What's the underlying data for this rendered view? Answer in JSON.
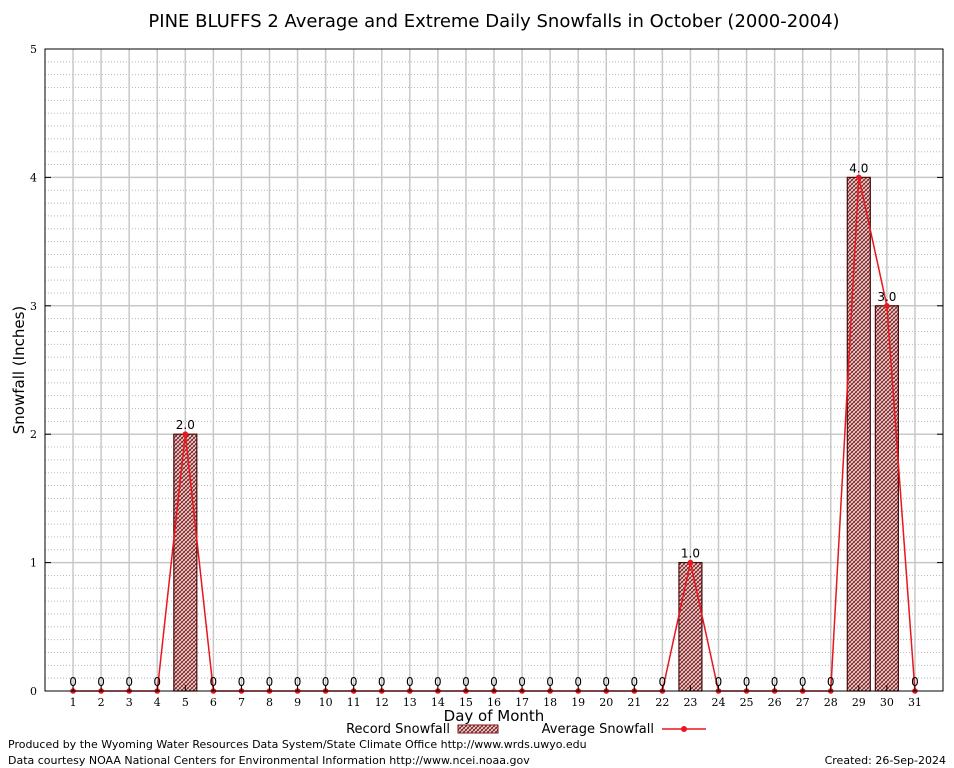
{
  "chart_data": {
    "type": "bar",
    "title": "PINE BLUFFS 2 Average and Extreme Daily Snowfalls in October (2000-2004)",
    "xlabel": "Day of Month",
    "ylabel": "Snowfall (Inches)",
    "ylim": [
      0,
      5
    ],
    "yticks": [
      "0",
      "1",
      "2",
      "3",
      "4",
      "5"
    ],
    "categories": [
      "1",
      "2",
      "3",
      "4",
      "5",
      "6",
      "7",
      "8",
      "9",
      "10",
      "11",
      "12",
      "13",
      "14",
      "15",
      "16",
      "17",
      "18",
      "19",
      "20",
      "21",
      "22",
      "23",
      "24",
      "25",
      "26",
      "27",
      "28",
      "29",
      "30",
      "31"
    ],
    "grid": true,
    "legend_placement": "bottom",
    "series": [
      {
        "name": "Record Snowfall",
        "kind": "bar",
        "color": "#8b0000",
        "values": [
          0,
          0,
          0,
          0,
          2.0,
          0,
          0,
          0,
          0,
          0,
          0,
          0,
          0,
          0,
          0,
          0,
          0,
          0,
          0,
          0,
          0,
          0,
          1.0,
          0,
          0,
          0,
          0,
          0,
          4.0,
          3.0,
          0
        ],
        "labels": [
          "0",
          "0",
          "0",
          "0",
          "2.0",
          "0",
          "0",
          "0",
          "0",
          "0",
          "0",
          "0",
          "0",
          "0",
          "0",
          "0",
          "0",
          "0",
          "0",
          "0",
          "0",
          "0",
          "1.0",
          "0",
          "0",
          "0",
          "0",
          "0",
          "4.0",
          "3.0",
          "0"
        ]
      },
      {
        "name": "Average Snowfall",
        "kind": "line",
        "color": "#e8161d",
        "values": [
          0,
          0,
          0,
          0,
          2.0,
          0,
          0,
          0,
          0,
          0,
          0,
          0,
          0,
          0,
          0,
          0,
          0,
          0,
          0,
          0,
          0,
          0,
          1.0,
          0,
          0,
          0,
          0,
          0,
          4.0,
          3.0,
          0
        ]
      }
    ]
  },
  "footer": {
    "produced_by": "Produced by the Wyoming Water Resources Data System/State Climate Office http://www.wrds.uwyo.edu",
    "courtesy": "Data courtesy NOAA National Centers for Environmental Information http://www.ncei.noaa.gov",
    "created": "Created: 26-Sep-2024"
  }
}
